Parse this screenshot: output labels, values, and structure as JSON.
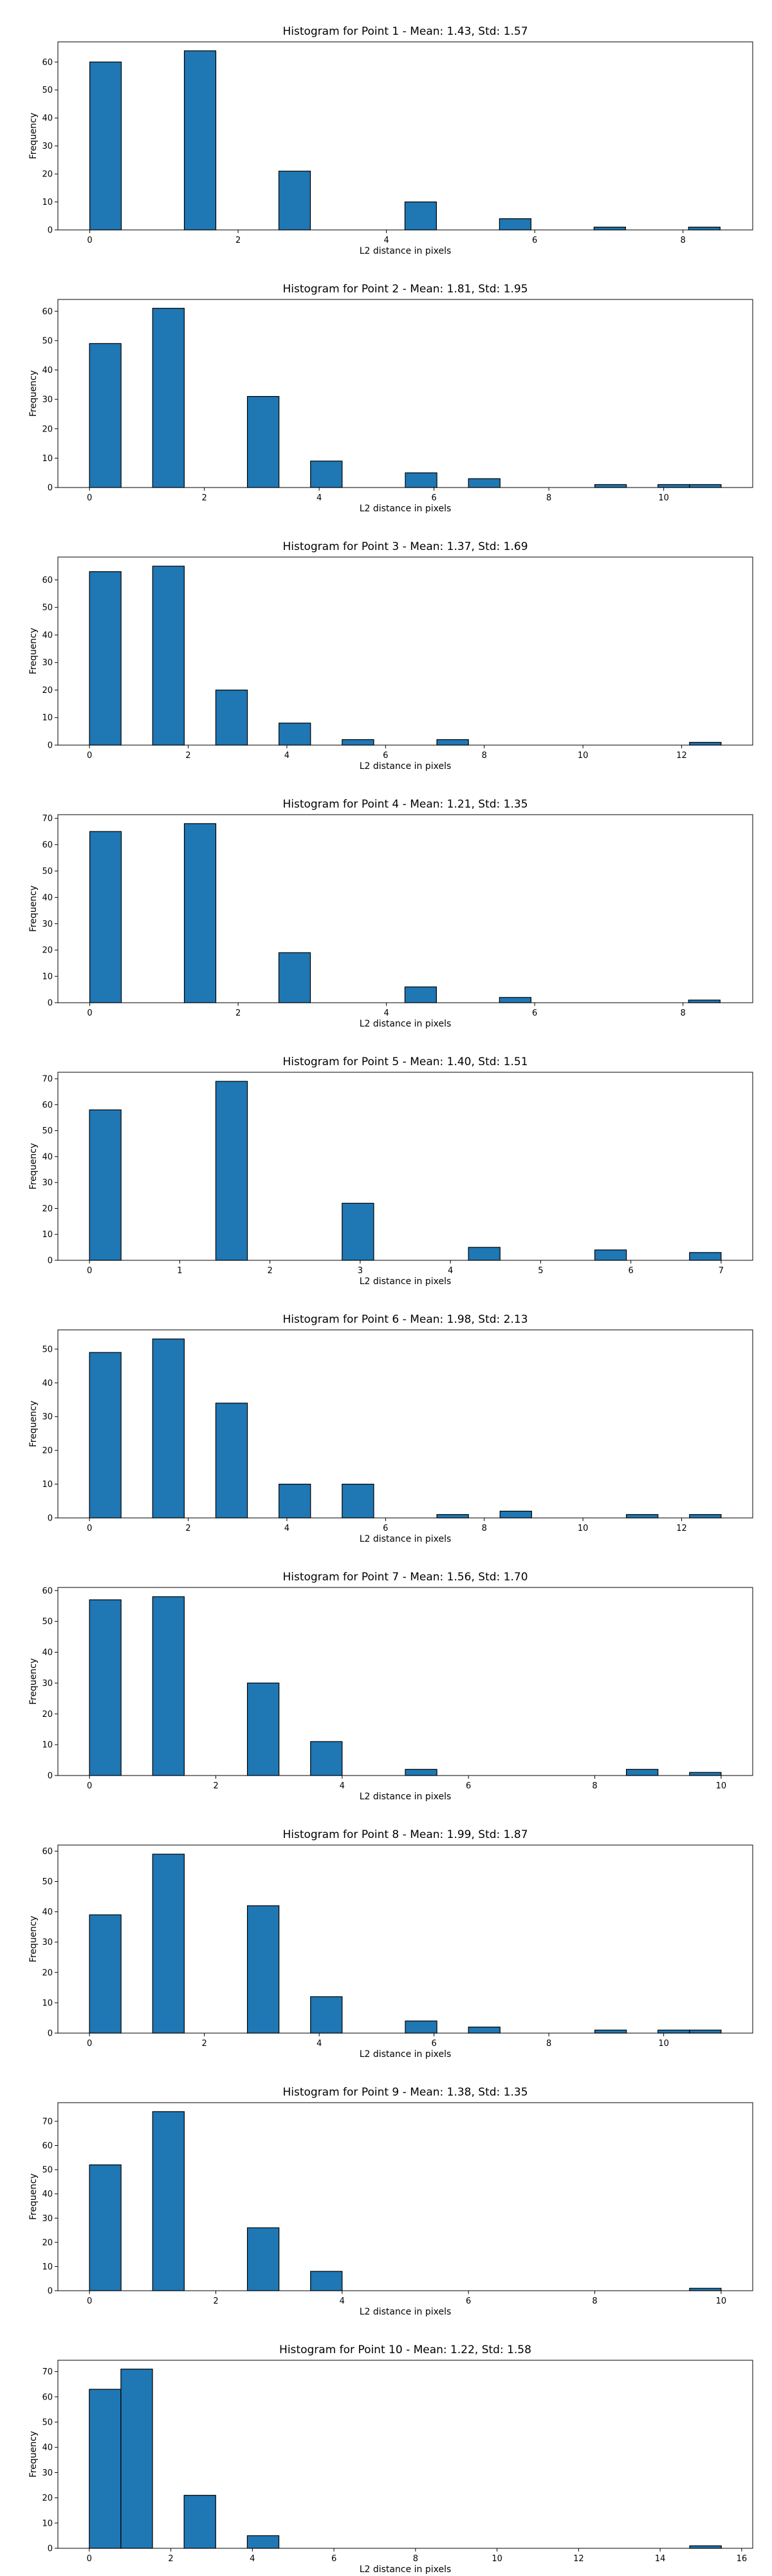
{
  "chart_data": [
    {
      "type": "bar",
      "title": "Histogram for Point 1 - Mean: 1.43, Std: 1.57",
      "xlabel": "L2 distance in pixels",
      "ylabel": "Frequency",
      "xlim": [
        -0.43,
        8.94
      ],
      "ylim": [
        0,
        67.2
      ],
      "xticks": [
        "0",
        "2",
        "4",
        "6",
        "8"
      ],
      "xtick_values": [
        0,
        2,
        4,
        6,
        8
      ],
      "yticks": [
        0,
        10,
        20,
        30,
        40,
        50,
        60
      ],
      "bins": [
        {
          "x0": 0.0,
          "x1": 0.425,
          "count": 60
        },
        {
          "x0": 1.275,
          "x1": 1.7,
          "count": 64
        },
        {
          "x0": 2.55,
          "x1": 2.975,
          "count": 21
        },
        {
          "x0": 4.25,
          "x1": 4.675,
          "count": 10
        },
        {
          "x0": 5.525,
          "x1": 5.95,
          "count": 4
        },
        {
          "x0": 6.8,
          "x1": 7.225,
          "count": 1
        },
        {
          "x0": 8.075,
          "x1": 8.5,
          "count": 1
        }
      ]
    },
    {
      "type": "bar",
      "title": "Histogram for Point 2 - Mean: 1.81, Std: 1.95",
      "xlabel": "L2 distance in pixels",
      "ylabel": "Frequency",
      "xlim": [
        -0.55,
        11.55
      ],
      "ylim": [
        0,
        64
      ],
      "xticks": [
        "0",
        "2",
        "4",
        "6",
        "8",
        "10"
      ],
      "xtick_values": [
        0,
        2,
        4,
        6,
        8,
        10
      ],
      "yticks": [
        0,
        10,
        20,
        30,
        40,
        50,
        60
      ],
      "bins": [
        {
          "x0": 0.0,
          "x1": 0.55,
          "count": 49
        },
        {
          "x0": 1.1,
          "x1": 1.65,
          "count": 61
        },
        {
          "x0": 2.75,
          "x1": 3.3,
          "count": 31
        },
        {
          "x0": 3.85,
          "x1": 4.4,
          "count": 9
        },
        {
          "x0": 5.5,
          "x1": 6.05,
          "count": 5
        },
        {
          "x0": 6.6,
          "x1": 7.15,
          "count": 3
        },
        {
          "x0": 8.8,
          "x1": 9.35,
          "count": 1
        },
        {
          "x0": 9.9,
          "x1": 10.45,
          "count": 1
        },
        {
          "x0": 10.45,
          "x1": 11.0,
          "count": 1
        }
      ]
    },
    {
      "type": "bar",
      "title": "Histogram for Point 3 - Mean: 1.37, Std: 1.69",
      "xlabel": "L2 distance in pixels",
      "ylabel": "Frequency",
      "xlim": [
        -0.64,
        13.44
      ],
      "ylim": [
        0,
        68.3
      ],
      "xticks": [
        "0",
        "2",
        "4",
        "6",
        "8",
        "10",
        "12"
      ],
      "xtick_values": [
        0,
        2,
        4,
        6,
        8,
        10,
        12
      ],
      "yticks": [
        0,
        10,
        20,
        30,
        40,
        50,
        60
      ],
      "bins": [
        {
          "x0": 0.0,
          "x1": 0.64,
          "count": 63
        },
        {
          "x0": 1.28,
          "x1": 1.92,
          "count": 65
        },
        {
          "x0": 2.56,
          "x1": 3.2,
          "count": 20
        },
        {
          "x0": 3.84,
          "x1": 4.48,
          "count": 8
        },
        {
          "x0": 5.12,
          "x1": 5.76,
          "count": 2
        },
        {
          "x0": 7.04,
          "x1": 7.68,
          "count": 2
        },
        {
          "x0": 12.16,
          "x1": 12.8,
          "count": 1
        }
      ]
    },
    {
      "type": "bar",
      "title": "Histogram for Point 4 - Mean: 1.21, Std: 1.35",
      "xlabel": "L2 distance in pixels",
      "ylabel": "Frequency",
      "xlim": [
        -0.43,
        8.94
      ],
      "ylim": [
        0,
        71.4
      ],
      "xticks": [
        "0",
        "2",
        "4",
        "6",
        "8"
      ],
      "xtick_values": [
        0,
        2,
        4,
        6,
        8
      ],
      "yticks": [
        0,
        10,
        20,
        30,
        40,
        50,
        60,
        70
      ],
      "bins": [
        {
          "x0": 0.0,
          "x1": 0.425,
          "count": 65
        },
        {
          "x0": 1.275,
          "x1": 1.7,
          "count": 68
        },
        {
          "x0": 2.55,
          "x1": 2.975,
          "count": 19
        },
        {
          "x0": 4.25,
          "x1": 4.675,
          "count": 6
        },
        {
          "x0": 5.525,
          "x1": 5.95,
          "count": 2
        },
        {
          "x0": 8.075,
          "x1": 8.5,
          "count": 1
        }
      ]
    },
    {
      "type": "bar",
      "title": "Histogram for Point 5 - Mean: 1.40, Std: 1.51",
      "xlabel": "L2 distance in pixels",
      "ylabel": "Frequency",
      "xlim": [
        -0.35,
        7.35
      ],
      "ylim": [
        0,
        72.5
      ],
      "xticks": [
        "0",
        "1",
        "2",
        "3",
        "4",
        "5",
        "6",
        "7"
      ],
      "xtick_values": [
        0,
        1,
        2,
        3,
        4,
        5,
        6,
        7
      ],
      "yticks": [
        0,
        10,
        20,
        30,
        40,
        50,
        60,
        70
      ],
      "bins": [
        {
          "x0": 0.0,
          "x1": 0.35,
          "count": 58
        },
        {
          "x0": 1.4,
          "x1": 1.75,
          "count": 69
        },
        {
          "x0": 2.8,
          "x1": 3.15,
          "count": 22
        },
        {
          "x0": 4.2,
          "x1": 4.55,
          "count": 5
        },
        {
          "x0": 5.6,
          "x1": 5.95,
          "count": 4
        },
        {
          "x0": 6.65,
          "x1": 7.0,
          "count": 3
        }
      ]
    },
    {
      "type": "bar",
      "title": "Histogram for Point 6 - Mean: 1.98, Std: 2.13",
      "xlabel": "L2 distance in pixels",
      "ylabel": "Frequency",
      "xlim": [
        -0.64,
        13.44
      ],
      "ylim": [
        0,
        55.7
      ],
      "xticks": [
        "0",
        "2",
        "4",
        "6",
        "8",
        "10",
        "12"
      ],
      "xtick_values": [
        0,
        2,
        4,
        6,
        8,
        10,
        12
      ],
      "yticks": [
        0,
        10,
        20,
        30,
        40,
        50
      ],
      "bins": [
        {
          "x0": 0.0,
          "x1": 0.64,
          "count": 49
        },
        {
          "x0": 1.28,
          "x1": 1.92,
          "count": 53
        },
        {
          "x0": 2.56,
          "x1": 3.2,
          "count": 34
        },
        {
          "x0": 3.84,
          "x1": 4.48,
          "count": 10
        },
        {
          "x0": 5.12,
          "x1": 5.76,
          "count": 10
        },
        {
          "x0": 7.04,
          "x1": 7.68,
          "count": 1
        },
        {
          "x0": 8.32,
          "x1": 8.96,
          "count": 2
        },
        {
          "x0": 10.88,
          "x1": 11.52,
          "count": 1
        },
        {
          "x0": 12.16,
          "x1": 12.8,
          "count": 1
        }
      ]
    },
    {
      "type": "bar",
      "title": "Histogram for Point 7 - Mean: 1.56, Std: 1.70",
      "xlabel": "L2 distance in pixels",
      "ylabel": "Frequency",
      "xlim": [
        -0.5,
        10.5
      ],
      "ylim": [
        0,
        61
      ],
      "xticks": [
        "0",
        "2",
        "4",
        "6",
        "8",
        "10"
      ],
      "xtick_values": [
        0,
        2,
        4,
        6,
        8,
        10
      ],
      "yticks": [
        0,
        10,
        20,
        30,
        40,
        50,
        60
      ],
      "bins": [
        {
          "x0": 0.0,
          "x1": 0.5,
          "count": 57
        },
        {
          "x0": 1.0,
          "x1": 1.5,
          "count": 58
        },
        {
          "x0": 2.5,
          "x1": 3.0,
          "count": 30
        },
        {
          "x0": 3.5,
          "x1": 4.0,
          "count": 11
        },
        {
          "x0": 5.0,
          "x1": 5.5,
          "count": 2
        },
        {
          "x0": 8.5,
          "x1": 9.0,
          "count": 2
        },
        {
          "x0": 9.5,
          "x1": 10.0,
          "count": 1
        }
      ]
    },
    {
      "type": "bar",
      "title": "Histogram for Point 8 - Mean: 1.99, Std: 1.87",
      "xlabel": "L2 distance in pixels",
      "ylabel": "Frequency",
      "xlim": [
        -0.55,
        11.55
      ],
      "ylim": [
        0,
        62
      ],
      "xticks": [
        "0",
        "2",
        "4",
        "6",
        "8",
        "10"
      ],
      "xtick_values": [
        0,
        2,
        4,
        6,
        8,
        10
      ],
      "yticks": [
        0,
        10,
        20,
        30,
        40,
        50,
        60
      ],
      "bins": [
        {
          "x0": 0.0,
          "x1": 0.55,
          "count": 39
        },
        {
          "x0": 1.1,
          "x1": 1.65,
          "count": 59
        },
        {
          "x0": 2.75,
          "x1": 3.3,
          "count": 42
        },
        {
          "x0": 3.85,
          "x1": 4.4,
          "count": 12
        },
        {
          "x0": 5.5,
          "x1": 6.05,
          "count": 4
        },
        {
          "x0": 6.6,
          "x1": 7.15,
          "count": 2
        },
        {
          "x0": 8.8,
          "x1": 9.35,
          "count": 1
        },
        {
          "x0": 9.9,
          "x1": 10.45,
          "count": 1
        },
        {
          "x0": 10.45,
          "x1": 11.0,
          "count": 1
        }
      ]
    },
    {
      "type": "bar",
      "title": "Histogram for Point 9 - Mean: 1.38, Std: 1.35",
      "xlabel": "L2 distance in pixels",
      "ylabel": "Frequency",
      "xlim": [
        -0.5,
        10.5
      ],
      "ylim": [
        0,
        77.7
      ],
      "xticks": [
        "0",
        "2",
        "4",
        "6",
        "8",
        "10"
      ],
      "xtick_values": [
        0,
        2,
        4,
        6,
        8,
        10
      ],
      "yticks": [
        0,
        10,
        20,
        30,
        40,
        50,
        60,
        70
      ],
      "bins": [
        {
          "x0": 0.0,
          "x1": 0.5,
          "count": 52
        },
        {
          "x0": 1.0,
          "x1": 1.5,
          "count": 74
        },
        {
          "x0": 2.5,
          "x1": 3.0,
          "count": 26
        },
        {
          "x0": 3.5,
          "x1": 4.0,
          "count": 8
        },
        {
          "x0": 9.5,
          "x1": 10.0,
          "count": 1
        }
      ]
    },
    {
      "type": "bar",
      "title": "Histogram for Point 10 - Mean: 1.22, Std: 1.58",
      "xlabel": "L2 distance in pixels",
      "ylabel": "Frequency",
      "xlim": [
        -0.77,
        16.27
      ],
      "ylim": [
        0,
        74.5
      ],
      "xticks": [
        "0",
        "2",
        "4",
        "6",
        "8",
        "10",
        "12",
        "14",
        "16"
      ],
      "xtick_values": [
        0,
        2,
        4,
        6,
        8,
        10,
        12,
        14,
        16
      ],
      "yticks": [
        0,
        10,
        20,
        30,
        40,
        50,
        60,
        70
      ],
      "bins": [
        {
          "x0": 0.0,
          "x1": 0.775,
          "count": 63
        },
        {
          "x0": 0.775,
          "x1": 1.55,
          "count": 71
        },
        {
          "x0": 2.325,
          "x1": 3.1,
          "count": 21
        },
        {
          "x0": 3.875,
          "x1": 4.65,
          "count": 5
        },
        {
          "x0": 14.725,
          "x1": 15.5,
          "count": 1
        }
      ]
    }
  ]
}
